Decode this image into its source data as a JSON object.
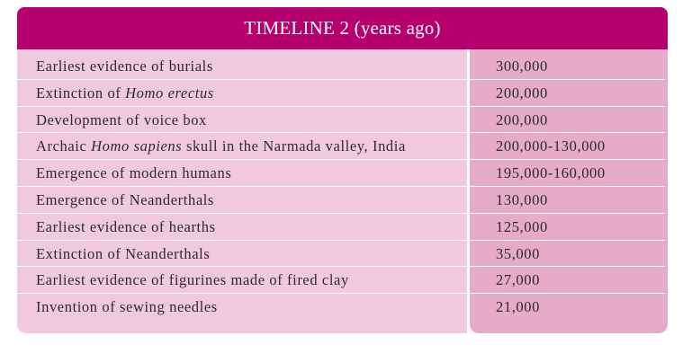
{
  "title": "TIMELINE 2 (years ago)",
  "rows": [
    {
      "event": [
        "Earliest evidence of burials"
      ],
      "date": "300,000"
    },
    {
      "event": [
        "Extinction of ",
        {
          "i": "Homo erectus"
        }
      ],
      "date": "200,000"
    },
    {
      "event": [
        "Development of voice box"
      ],
      "date": "200,000"
    },
    {
      "event": [
        "Archaic ",
        {
          "i": "Homo sapiens"
        },
        " skull in the Narmada valley, India"
      ],
      "date": "200,000-130,000"
    },
    {
      "event": [
        "Emergence of modern humans"
      ],
      "date": "195,000-160,000"
    },
    {
      "event": [
        "Emergence of Neanderthals"
      ],
      "date": "130,000"
    },
    {
      "event": [
        "Earliest evidence of hearths"
      ],
      "date": "125,000"
    },
    {
      "event": [
        "Extinction of Neanderthals"
      ],
      "date": "35,000"
    },
    {
      "event": [
        "Earliest evidence of figurines made of fired clay"
      ],
      "date": "27,000"
    },
    {
      "event": [
        "Invention of sewing needles"
      ],
      "date": "21,000"
    }
  ],
  "colors": {
    "header": "#b5006e",
    "left_column": "#f1c9dc",
    "right_column": "#e6acc7"
  }
}
